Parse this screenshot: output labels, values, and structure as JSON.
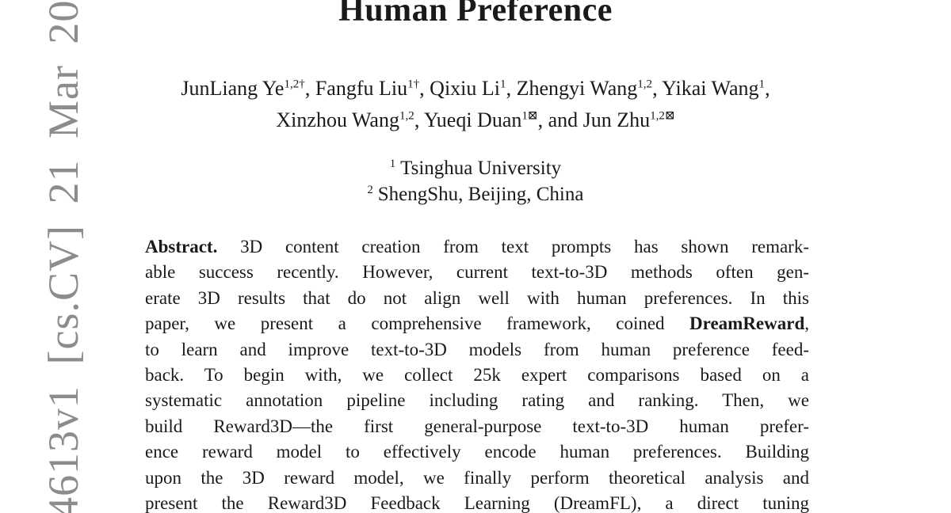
{
  "colors": {
    "background": "#ffffff",
    "text": "#1a1a1a",
    "watermark_gray": "#8c8c8c"
  },
  "watermark": {
    "text": "4613v1 [cs.CV] 21 Mar 20"
  },
  "title": {
    "line": "Human Preference"
  },
  "authors": {
    "line1": [
      {
        "name": "JunLiang Ye",
        "sup": "1,2†",
        "after": ", "
      },
      {
        "name": "Fangfu Liu",
        "sup": "1†",
        "after": ", "
      },
      {
        "name": "Qixiu Li",
        "sup": "1",
        "after": ", "
      },
      {
        "name": "Zhengyi Wang",
        "sup": "1,2",
        "after": ", "
      },
      {
        "name": "Yikai Wang",
        "sup": "1",
        "after": ","
      }
    ],
    "line2": [
      {
        "name": "Xinzhou Wang",
        "sup": "1,2",
        "after": ", "
      },
      {
        "name": "Yueqi Duan",
        "sup": "1⊠",
        "after": ", "
      },
      {
        "pre": "and ",
        "name": "Jun Zhu",
        "sup": "1,2⊠",
        "after": ""
      }
    ]
  },
  "affiliations": [
    {
      "marker": "1",
      "name": "Tsinghua University"
    },
    {
      "marker": "2",
      "name": "ShengShu, Beijing, China"
    }
  ],
  "abstract": {
    "lines": [
      {
        "bold": "Abstract.",
        "rest": " 3D content creation from text prompts has shown remark-"
      },
      {
        "rest": "able success recently. However, current text-to-3D methods often gen-"
      },
      {
        "rest": "erate 3D results that do not align well with human preferences. In this"
      },
      {
        "pre": "paper, we present a comprehensive framework, coined ",
        "bold": "DreamReward",
        "rest": ","
      },
      {
        "rest": "to learn and improve text-to-3D models from human preference feed-"
      },
      {
        "rest": "back. To begin with, we collect 25k expert comparisons based on a"
      },
      {
        "rest": "systematic annotation pipeline including rating and ranking. Then, we"
      },
      {
        "rest": "build Reward3D—the first general-purpose text-to-3D human prefer-"
      },
      {
        "rest": "ence reward model to effectively encode human preferences. Building"
      },
      {
        "rest": "upon the 3D reward model, we finally perform theoretical analysis and"
      },
      {
        "rest": "present the Reward3D Feedback Learning (DreamFL), a direct tuning"
      }
    ]
  }
}
